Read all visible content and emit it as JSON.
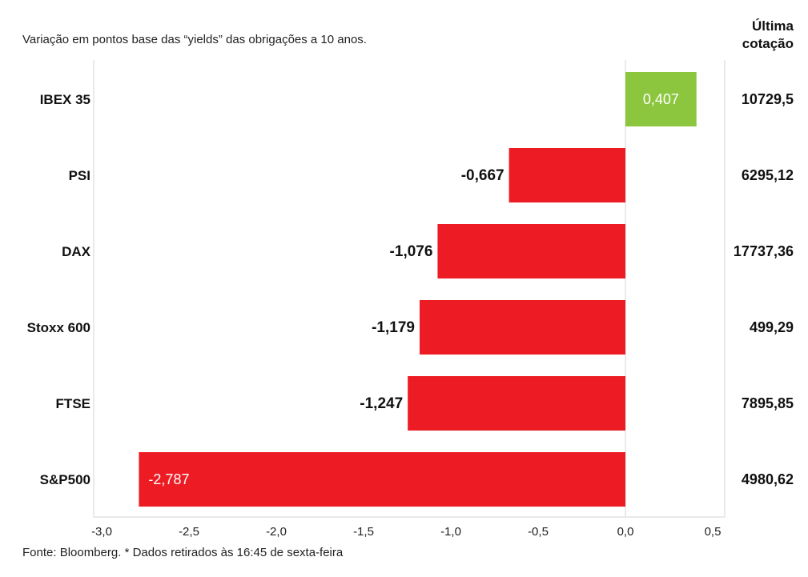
{
  "chart_data": {
    "type": "bar",
    "orientation": "horizontal",
    "title": "Variação em pontos base das “yields” das obrigações a 10 anos.",
    "categories": [
      "IBEX 35",
      "PSI",
      "DAX",
      "Stoxx 600",
      "FTSE",
      "S&P500"
    ],
    "values": [
      0.407,
      -0.667,
      -1.076,
      -1.179,
      -1.247,
      -2.787
    ],
    "value_labels": [
      "0,407",
      "-0,667",
      "-1,076",
      "-1,179",
      "-1,247",
      "-2,787"
    ],
    "xlim": [
      -3.0,
      0.5
    ],
    "xticks": [
      "-3,0",
      "-2,5",
      "-2,0",
      "-1,5",
      "-1,0",
      "-0,5",
      "0,0",
      "0,5"
    ],
    "xtick_values": [
      -3,
      -2.5,
      -2,
      -1.5,
      -1,
      -0.5,
      0,
      0.5
    ],
    "right_column_header": [
      "Última",
      "cotação"
    ],
    "right_column_values": [
      "10729,5",
      "6295,12",
      "17737,36",
      "499,29",
      "7895,85",
      "4980,62"
    ],
    "positive_color": "#8cc63f",
    "negative_color": "#ed1c24",
    "source": "Fonte: Bloomberg. * Dados retirados às 16:45 de sexta-feira"
  }
}
